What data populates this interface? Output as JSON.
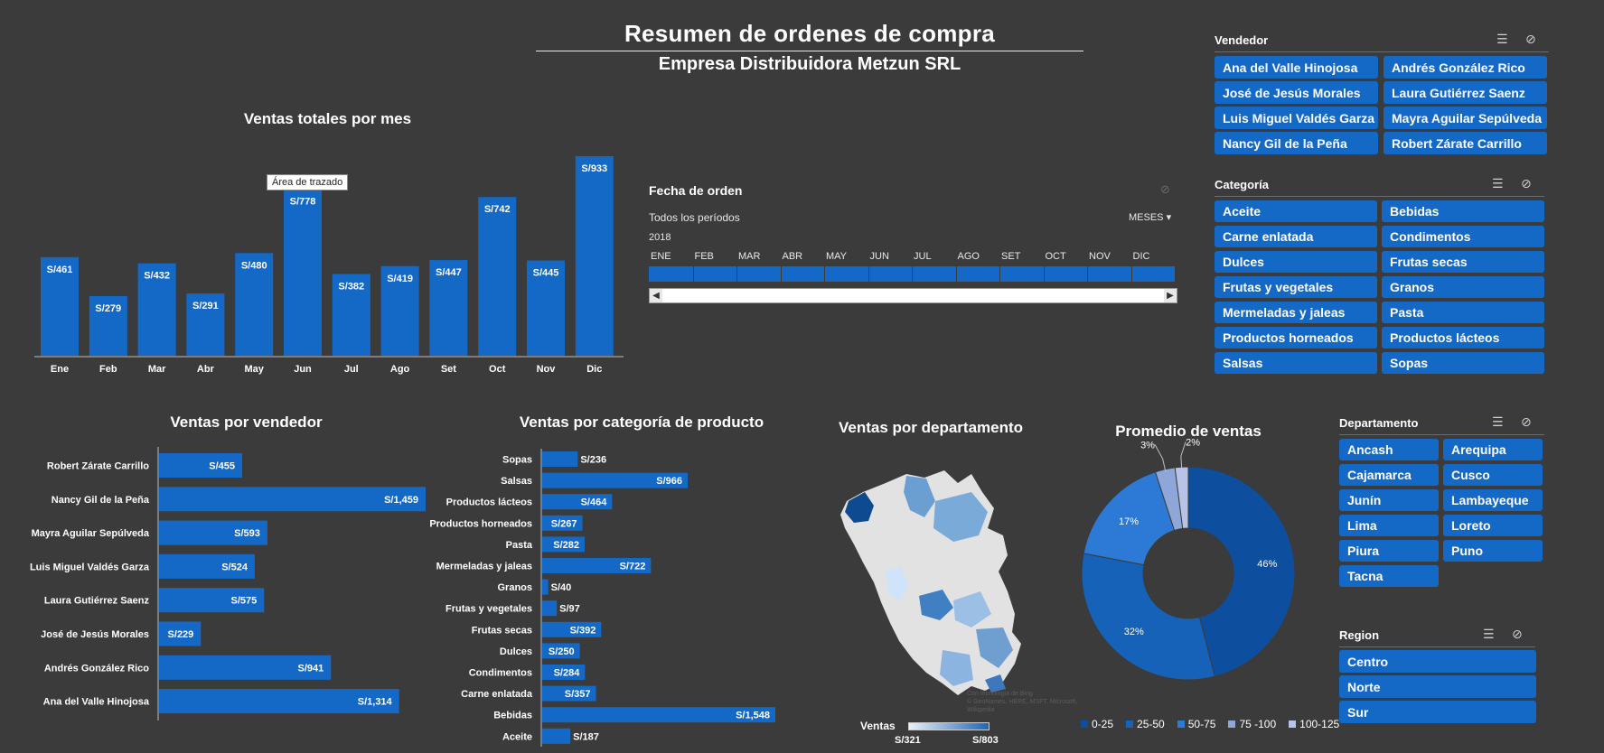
{
  "header": {
    "title": "Resumen de ordenes de compra",
    "subtitle": "Empresa Distribuidora Metzun SRL"
  },
  "monthly_chart": {
    "title": "Ventas totales por mes",
    "tooltip": "Área de trazado"
  },
  "timeline": {
    "title": "Fecha de orden",
    "period": "Todos los períodos",
    "year": "2018",
    "level": "MESES",
    "months": [
      "ENE",
      "FEB",
      "MAR",
      "ABR",
      "MAY",
      "JUN",
      "JUL",
      "AGO",
      "SET",
      "OCT",
      "NOV",
      "DIC"
    ]
  },
  "seller_chart": {
    "title": "Ventas por vendedor"
  },
  "category_chart": {
    "title": "Ventas por categoría de producto"
  },
  "map": {
    "title": "Ventas por departamento",
    "legend_label": "Ventas",
    "legend_min": "S/321",
    "legend_max": "S/803",
    "credit_line1": "Con tecnología de Bing",
    "credit_line2": "© GeoNames, HERE, MSFT, Microsoft, Wikipedia"
  },
  "donut_chart": {
    "title": "Promedio de ventas",
    "legend": [
      "0-25",
      "25-50",
      "50-75",
      "75 -100",
      "100-125"
    ]
  },
  "slicers": {
    "vendedor": {
      "title": "Vendedor",
      "items": [
        "Ana del Valle Hinojosa",
        "Andrés González Rico",
        "José de Jesús Morales",
        "Laura Gutiérrez Saenz",
        "Luis Miguel Valdés Garza",
        "Mayra Aguilar Sepúlveda",
        "Nancy Gil de la Peña",
        "Robert Zárate Carrillo"
      ]
    },
    "categoria": {
      "title": "Categoría",
      "items": [
        "Aceite",
        "Bebidas",
        "Carne enlatada",
        "Condimentos",
        "Dulces",
        "Frutas secas",
        "Frutas y vegetales",
        "Granos",
        "Mermeladas y jaleas",
        "Pasta",
        "Productos horneados",
        "Productos lácteos",
        "Salsas",
        "Sopas"
      ]
    },
    "departamento": {
      "title": "Departamento",
      "items": [
        "Ancash",
        "Arequipa",
        "Cajamarca",
        "Cusco",
        "Junín",
        "Lambayeque",
        "Lima",
        "Loreto",
        "Piura",
        "Puno",
        "Tacna"
      ]
    },
    "region": {
      "title": "Region",
      "items": [
        "Centro",
        "Norte",
        "Sur"
      ]
    }
  },
  "colors": {
    "background": "#3b3b3b",
    "bar": "#1469c7",
    "slicer": "#1469c7"
  },
  "chart_data": [
    {
      "type": "bar",
      "title": "Ventas totales por mes",
      "categories": [
        "Ene",
        "Feb",
        "Mar",
        "Abr",
        "May",
        "Jun",
        "Jul",
        "Ago",
        "Set",
        "Oct",
        "Nov",
        "Dic"
      ],
      "values": [
        461,
        279,
        432,
        291,
        480,
        778,
        382,
        419,
        447,
        742,
        445,
        933
      ],
      "labels": [
        "S/461",
        "S/279",
        "S/432",
        "S/291",
        "S/480",
        "S/778",
        "S/382",
        "S/419",
        "S/447",
        "S/742",
        "S/445",
        "S/933"
      ]
    },
    {
      "type": "bar",
      "orientation": "horizontal",
      "title": "Ventas por vendedor",
      "categories": [
        "Robert Zárate Carrillo",
        "Nancy Gil de la Peña",
        "Mayra Aguilar Sepúlveda",
        "Luis Miguel Valdés Garza",
        "Laura Gutiérrez Saenz",
        "José de Jesús Morales",
        "Andrés González Rico",
        "Ana del Valle Hinojosa"
      ],
      "values": [
        455,
        1459,
        593,
        524,
        575,
        229,
        941,
        1314
      ],
      "labels": [
        "S/455",
        "S/1,459",
        "S/593",
        "S/524",
        "S/575",
        "S/229",
        "S/941",
        "S/1,314"
      ]
    },
    {
      "type": "bar",
      "orientation": "horizontal",
      "title": "Ventas por categoría de producto",
      "categories": [
        "Sopas",
        "Salsas",
        "Productos lácteos",
        "Productos horneados",
        "Pasta",
        "Mermeladas y jaleas",
        "Granos",
        "Frutas y vegetales",
        "Frutas secas",
        "Dulces",
        "Condimentos",
        "Carne enlatada",
        "Bebidas",
        "Aceite"
      ],
      "values": [
        236,
        966,
        464,
        267,
        282,
        722,
        40,
        97,
        392,
        250,
        284,
        357,
        1548,
        187
      ],
      "labels": [
        "S/236",
        "S/966",
        "S/464",
        "S/267",
        "S/282",
        "S/722",
        "S/40",
        "S/97",
        "S/392",
        "S/250",
        "S/284",
        "S/357",
        "S/1,548",
        "S/187"
      ]
    },
    {
      "type": "pie",
      "title": "Promedio de ventas",
      "categories": [
        "0-25",
        "25-50",
        "50-75",
        "75 -100",
        "100-125"
      ],
      "values": [
        46,
        32,
        17,
        3,
        2
      ],
      "labels": [
        "46%",
        "32%",
        "17%",
        "3%",
        "2%"
      ],
      "colors": [
        "#0d4f9e",
        "#1562b8",
        "#2d7ad6",
        "#8fa6d8",
        "#b7c4e6"
      ]
    }
  ]
}
